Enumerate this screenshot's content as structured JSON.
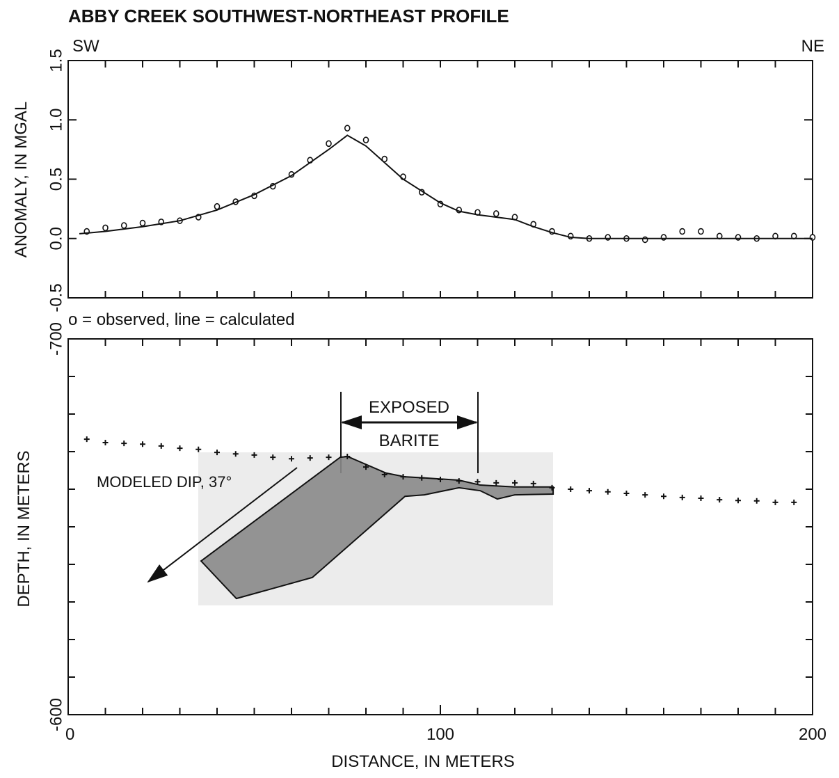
{
  "chart_data": [
    {
      "type": "line",
      "title": "ABBY CREEK SOUTHWEST-NORTHEAST PROFILE",
      "left_label": "SW",
      "right_label": "NE",
      "y_label": "ANOMALY, IN MGAL",
      "note": "o = observed, line = calculated",
      "xlim": [
        0,
        200
      ],
      "ylim": [
        -0.5,
        1.5
      ],
      "yticks": [
        -0.5,
        {
          "value": 0,
          "label": "0.0"
        },
        0.5,
        {
          "value": 1,
          "label": "1.0"
        },
        1.5
      ],
      "series": [
        {
          "name": "observed",
          "style": "markers",
          "color": "#111111",
          "x": [
            5,
            10,
            15,
            20,
            25,
            30,
            35,
            40,
            45,
            50,
            55,
            60,
            65,
            70,
            75,
            80,
            85,
            90,
            95,
            100,
            105,
            110,
            115,
            120,
            125,
            130,
            135,
            140,
            145,
            150,
            155,
            160,
            165,
            170,
            175,
            180,
            185,
            190,
            195,
            200
          ],
          "values": [
            0.06,
            0.09,
            0.11,
            0.13,
            0.14,
            0.15,
            0.18,
            0.27,
            0.31,
            0.36,
            0.44,
            0.54,
            0.66,
            0.8,
            0.93,
            0.83,
            0.67,
            0.52,
            0.39,
            0.29,
            0.24,
            0.22,
            0.21,
            0.18,
            0.12,
            0.06,
            0.02,
            0,
            0.01,
            0,
            -0.01,
            0.01,
            0.06,
            0.06,
            0.02,
            0.01,
            0,
            0.02,
            0.02,
            0.01
          ]
        },
        {
          "name": "calculated",
          "style": "line",
          "color": "#111111",
          "x": [
            3,
            10,
            20,
            30,
            40,
            50,
            60,
            70,
            75,
            80,
            90,
            100,
            105,
            110,
            120,
            125,
            130,
            135,
            140,
            200
          ],
          "values": [
            0.04,
            0.06,
            0.1,
            0.15,
            0.24,
            0.37,
            0.53,
            0.75,
            0.87,
            0.78,
            0.5,
            0.3,
            0.23,
            0.2,
            0.16,
            0.1,
            0.05,
            0.01,
            0,
            0
          ]
        }
      ]
    },
    {
      "type": "section",
      "y_label": "DEPTH, IN METERS",
      "x_label": "DISTANCE, IN METERS",
      "annotations": [
        "EXPOSED",
        "BARITE",
        "MODELED DIP, 37°"
      ],
      "xlim": [
        0,
        200
      ],
      "ylim": [
        -700,
        -600
      ],
      "inverted": true,
      "xticks": [
        0,
        100,
        200
      ],
      "yticks": [
        -700,
        -600
      ],
      "series": [
        {
          "name": "surface",
          "style": "plus",
          "color": "#111111",
          "x": [
            5,
            10,
            15,
            20,
            25,
            30,
            35,
            40,
            45,
            50,
            55,
            60,
            65,
            70,
            75,
            80,
            85,
            90,
            95,
            100,
            105,
            110,
            115,
            120,
            125,
            130,
            135,
            140,
            145,
            150,
            155,
            160,
            165,
            170,
            175,
            180,
            185,
            190,
            195
          ],
          "values": [
            -673.3,
            -672.4,
            -672.2,
            -672,
            -671.5,
            -670.9,
            -670.6,
            -669.8,
            -669.4,
            -669.1,
            -668.5,
            -668.1,
            -668.3,
            -668.5,
            -668.7,
            -665.9,
            -663.9,
            -663.3,
            -663,
            -662.6,
            -662.2,
            -662,
            -661.7,
            -661.7,
            -661.5,
            -660.4,
            -660,
            -659.6,
            -659.3,
            -658.9,
            -658.5,
            -658.1,
            -657.8,
            -657.6,
            -657.2,
            -657,
            -656.9,
            -656.5,
            -656.5
          ]
        },
        {
          "name": "barite body",
          "style": "polygon",
          "color": "#8a8a8a",
          "x": [
            35.7,
            73.1,
            75.1,
            85.4,
            90.5,
            95.7,
            105,
            110.7,
            120,
            130.3,
            130.3,
            120,
            115.3,
            110.7,
            105,
            95.7,
            90.5,
            65.6,
            45.2
          ],
          "values": [
            -640.9,
            -668.5,
            -668.7,
            -664.3,
            -663.3,
            -663,
            -662.4,
            -661.1,
            -660.6,
            -660.6,
            -658.7,
            -658.5,
            -657.4,
            -659.6,
            -660.4,
            -658.5,
            -658.1,
            -636.5,
            -630.9
          ]
        }
      ]
    }
  ]
}
